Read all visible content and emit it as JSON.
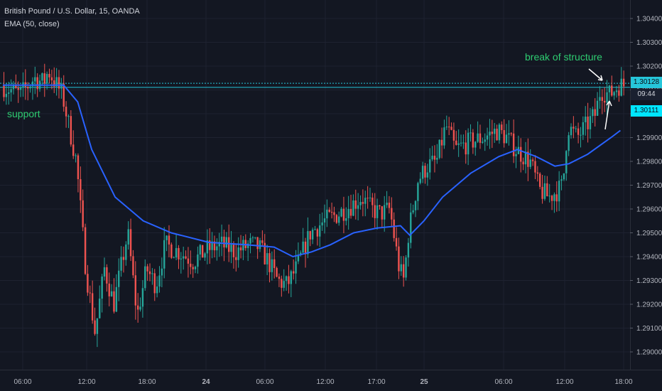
{
  "header": {
    "symbol_line": "British Pound / U.S. Dollar, 15, OANDA",
    "indicator_line": "EMA (50, close)"
  },
  "annotations": {
    "support": "support",
    "break_of_structure": "break of structure"
  },
  "price_tags": {
    "line_a": "1.30128",
    "countdown": "09:44",
    "line_b": "1.30111"
  },
  "colors": {
    "background": "#131722",
    "up_candle": "#26a69a",
    "down_candle": "#ef5350",
    "ema": "#2962ff",
    "level_line": "#26c6da",
    "annotation": "#2ecc71",
    "grid": "#1e2230"
  },
  "chart_data": {
    "type": "candlestick",
    "title": "British Pound / U.S. Dollar, 15, OANDA",
    "indicator": "EMA (50, close)",
    "ylim": [
      1.2895,
      1.3045
    ],
    "y_ticks": [
      "1.30400",
      "1.30300",
      "1.30200",
      "1.30100",
      "1.30000",
      "1.29900",
      "1.29800",
      "1.29700",
      "1.29600",
      "1.29500",
      "1.29400",
      "1.29300",
      "1.29200",
      "1.29100",
      "1.29000"
    ],
    "x_ticks": [
      "06:00",
      "12:00",
      "18:00",
      "24",
      "06:00",
      "12:00",
      "17:00",
      "25",
      "06:00",
      "12:00",
      "18:00"
    ],
    "horizontal_levels": [
      1.30128,
      1.30111
    ],
    "price_path": [
      [
        0,
        1.3012
      ],
      [
        4,
        1.3008
      ],
      [
        7,
        1.3015
      ],
      [
        9,
        1.3013
      ],
      [
        10,
        1.3018
      ],
      [
        13,
        1.3008
      ],
      [
        16,
        1.298
      ],
      [
        18,
        1.2935
      ],
      [
        20,
        1.2908
      ],
      [
        22,
        1.2935
      ],
      [
        24,
        1.292
      ],
      [
        27,
        1.295
      ],
      [
        29,
        1.2915
      ],
      [
        31,
        1.2935
      ],
      [
        33,
        1.2928
      ],
      [
        35,
        1.2945
      ],
      [
        38,
        1.2942
      ],
      [
        41,
        1.2938
      ],
      [
        44,
        1.2943
      ],
      [
        47,
        1.2945
      ],
      [
        50,
        1.2942
      ],
      [
        53,
        1.2945
      ],
      [
        55,
        1.2944
      ],
      [
        57,
        1.2938
      ],
      [
        59,
        1.293
      ],
      [
        61,
        1.2928
      ],
      [
        63,
        1.2935
      ],
      [
        66,
        1.295
      ],
      [
        69,
        1.2955
      ],
      [
        72,
        1.2958
      ],
      [
        75,
        1.2962
      ],
      [
        77,
        1.2965
      ],
      [
        79,
        1.296
      ],
      [
        81,
        1.2958
      ],
      [
        83,
        1.296
      ],
      [
        85,
        1.2935
      ],
      [
        86,
        1.293
      ],
      [
        87,
        1.295
      ],
      [
        89,
        1.2972
      ],
      [
        91,
        1.2978
      ],
      [
        93,
        1.298
      ],
      [
        95,
        1.2995
      ],
      [
        97,
        1.2985
      ],
      [
        100,
        1.2988
      ],
      [
        103,
        1.299
      ],
      [
        106,
        1.2993
      ],
      [
        108,
        1.299
      ],
      [
        110,
        1.2985
      ],
      [
        113,
        1.298
      ],
      [
        115,
        1.2968
      ],
      [
        117,
        1.2965
      ],
      [
        119,
        1.2968
      ],
      [
        120,
        1.297
      ],
      [
        121,
        1.2995
      ],
      [
        123,
        1.299
      ],
      [
        125,
        1.2995
      ],
      [
        127,
        1.3
      ],
      [
        128,
        1.301
      ],
      [
        130,
        1.3008
      ],
      [
        132,
        1.3012
      ]
    ],
    "ema_path": [
      [
        0,
        1.3012
      ],
      [
        13,
        1.3012
      ],
      [
        16,
        1.3005
      ],
      [
        19,
        1.2985
      ],
      [
        24,
        1.2965
      ],
      [
        30,
        1.2955
      ],
      [
        36,
        1.295
      ],
      [
        44,
        1.2946
      ],
      [
        52,
        1.2945
      ],
      [
        58,
        1.2944
      ],
      [
        62,
        1.294
      ],
      [
        66,
        1.2942
      ],
      [
        70,
        1.2945
      ],
      [
        75,
        1.295
      ],
      [
        80,
        1.2952
      ],
      [
        85,
        1.2953
      ],
      [
        87,
        1.2949
      ],
      [
        90,
        1.2955
      ],
      [
        94,
        1.2965
      ],
      [
        100,
        1.2975
      ],
      [
        106,
        1.2982
      ],
      [
        110,
        1.2985
      ],
      [
        114,
        1.2982
      ],
      [
        118,
        1.2978
      ],
      [
        121,
        1.2979
      ],
      [
        125,
        1.2983
      ],
      [
        130,
        1.299
      ],
      [
        132,
        1.2993
      ]
    ],
    "x_range": [
      0,
      133
    ]
  }
}
